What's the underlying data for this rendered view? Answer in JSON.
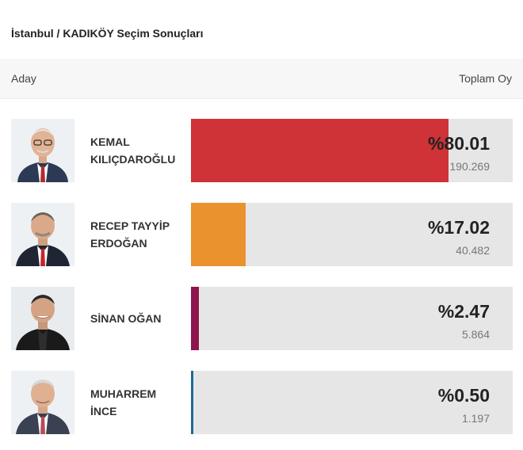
{
  "title": "İstanbul / KADIKÖY Seçim Sonuçları",
  "header": {
    "left": "Aday",
    "right": "Toplam Oy"
  },
  "candidates": [
    {
      "name_line1": "KEMAL",
      "name_line2": "KILIÇDAROĞLU",
      "percent_label": "%80.01",
      "percent": 80.01,
      "votes": "190.269",
      "color": "#cf3237"
    },
    {
      "name_line1": "RECEP TAYYİP",
      "name_line2": "ERDOĞAN",
      "percent_label": "%17.02",
      "percent": 17.02,
      "votes": "40.482",
      "color": "#ea922d"
    },
    {
      "name_line1": "SİNAN OĞAN",
      "name_line2": "",
      "percent_label": "%2.47",
      "percent": 2.47,
      "votes": "5.864",
      "color": "#8e1450"
    },
    {
      "name_line1": "MUHARREM",
      "name_line2": "İNCE",
      "percent_label": "%0.50",
      "percent": 0.5,
      "votes": "1.197",
      "color": "#1c6a9c"
    }
  ]
}
